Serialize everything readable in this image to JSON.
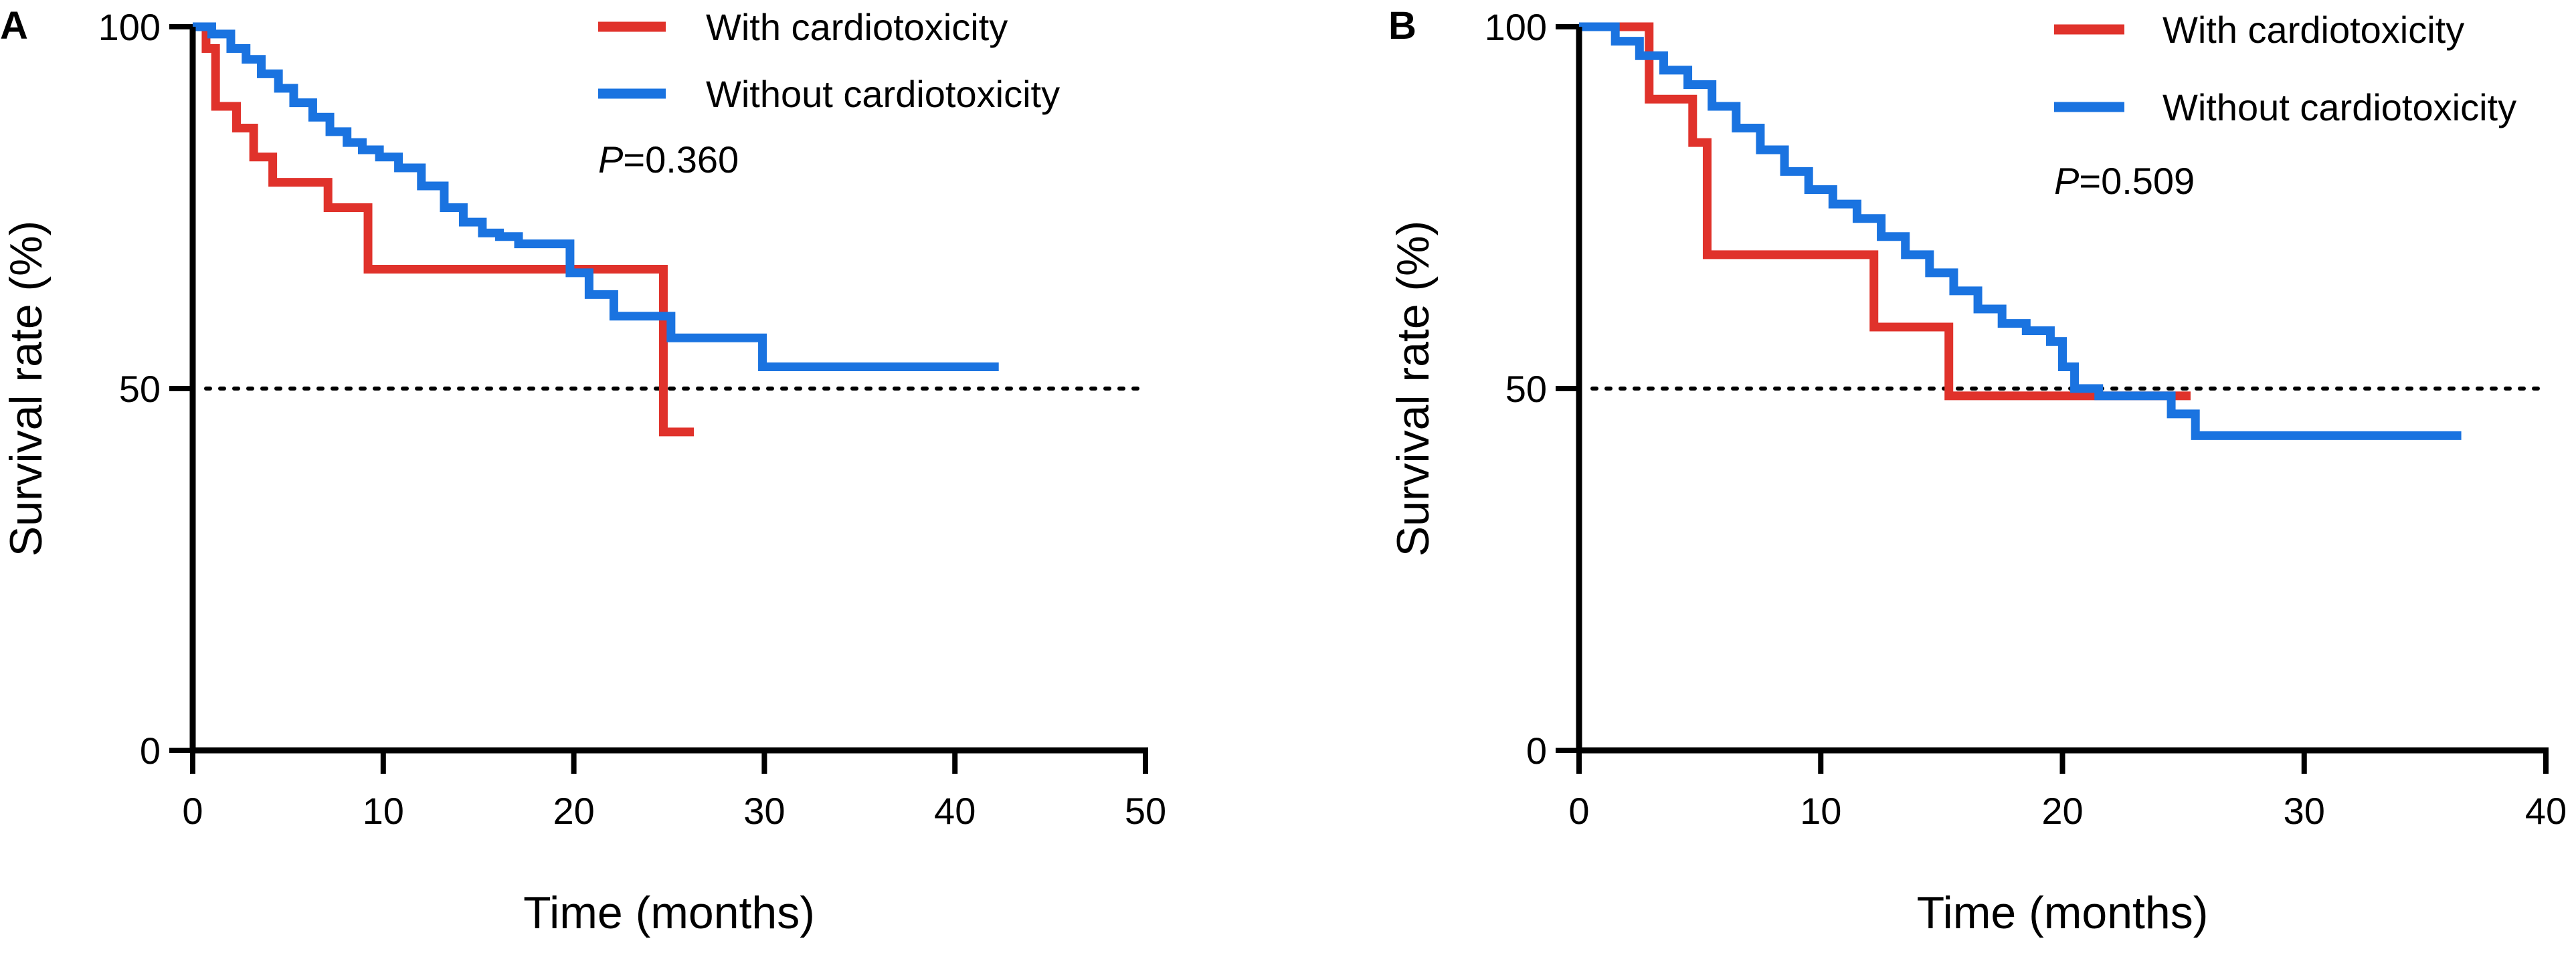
{
  "colors": {
    "with": "#e0322b",
    "without": "#1a73e0",
    "axis": "#000000"
  },
  "chart_data": [
    {
      "type": "line",
      "step": true,
      "panel": "A",
      "xlabel": "Time (months)",
      "ylabel": "Survival rate (%)",
      "xlim": [
        0,
        50
      ],
      "ylim": [
        0,
        100
      ],
      "xticks": [
        0,
        10,
        20,
        30,
        40,
        50
      ],
      "yticks": [
        0,
        50,
        100
      ],
      "reference_line": {
        "y": 50,
        "style": "dotted"
      },
      "annotation": {
        "label": "P",
        "value": "=0.360"
      },
      "legend_position": "top-right",
      "series": [
        {
          "name": "With cardiotoxicity",
          "color_key": "with",
          "x": [
            0,
            0.7,
            1.2,
            2.3,
            3.2,
            4.2,
            5.1,
            7.1,
            9.2,
            24.7,
            26.3
          ],
          "y": [
            100,
            97,
            89,
            86,
            82,
            78.5,
            78.5,
            75,
            66.5,
            44,
            44
          ]
        },
        {
          "name": "Without cardiotoxicity",
          "color_key": "without",
          "x": [
            0,
            1,
            2,
            2.8,
            3.6,
            4.5,
            5.3,
            6.3,
            7.2,
            8.1,
            8.9,
            9.8,
            10.8,
            12,
            13.2,
            14.2,
            15.2,
            16.1,
            17.1,
            18.1,
            19.8,
            20.8,
            22.1,
            23,
            25.1,
            25.9,
            29.9,
            42.3
          ],
          "y": [
            100,
            99,
            97,
            95.5,
            93.5,
            91.5,
            89.5,
            87.5,
            85.5,
            84,
            83,
            82,
            80.5,
            78,
            75,
            73,
            71.5,
            71,
            70,
            70,
            66,
            63,
            60,
            60,
            57,
            57,
            53,
            53
          ]
        }
      ]
    },
    {
      "type": "line",
      "step": true,
      "panel": "B",
      "xlabel": "Time (months)",
      "ylabel": "Survival rate (%)",
      "xlim": [
        0,
        40
      ],
      "ylim": [
        0,
        100
      ],
      "xticks": [
        0,
        10,
        20,
        30,
        40
      ],
      "yticks": [
        0,
        50,
        100
      ],
      "reference_line": {
        "y": 50,
        "style": "dotted"
      },
      "annotation": {
        "label": "P",
        "value": "=0.509"
      },
      "legend_position": "top-right",
      "series": [
        {
          "name": "With cardiotoxicity",
          "color_key": "with",
          "x": [
            0,
            2.9,
            4.7,
            5.3,
            12.2,
            15.3,
            25.3
          ],
          "y": [
            100,
            90,
            84,
            68.5,
            58.5,
            49,
            49
          ]
        },
        {
          "name": "Without cardiotoxicity",
          "color_key": "without",
          "x": [
            0,
            1.5,
            2.5,
            3.5,
            4.5,
            5.5,
            6.5,
            7.5,
            8.5,
            9.5,
            10.5,
            11.5,
            12.5,
            13.5,
            14.5,
            15.5,
            16.5,
            17.5,
            18.5,
            19.5,
            20,
            20.5,
            21.5,
            23.5,
            24.5,
            25.5,
            36.5
          ],
          "y": [
            100,
            98,
            96,
            94,
            92,
            89,
            86,
            83,
            80,
            77.5,
            75.5,
            73.5,
            71,
            68.5,
            66,
            63.5,
            61,
            59,
            58,
            56.5,
            53,
            50,
            49,
            49,
            46.5,
            43.5,
            43.5
          ]
        }
      ]
    }
  ]
}
